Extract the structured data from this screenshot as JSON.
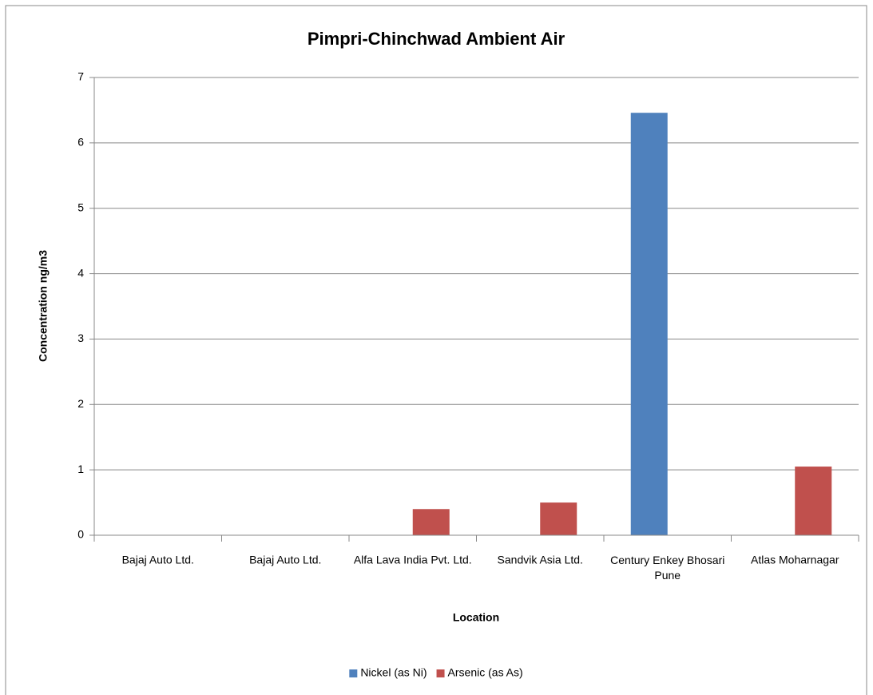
{
  "chart_data": {
    "type": "bar",
    "title": "Pimpri-Chinchwad Ambient Air",
    "x_label": "Location",
    "y_label": "Concentration ng/m3",
    "categories": [
      "Bajaj Auto Ltd.",
      "Bajaj Auto Ltd.",
      "Alfa Lava India Pvt. Ltd.",
      "Sandvik Asia Ltd.",
      "Century Enkey Bhosari Pune",
      "Atlas Moharnagar"
    ],
    "series": [
      {
        "name": "Nickel (as Ni)",
        "color": "#4f81bd",
        "values": [
          0,
          0,
          0,
          0,
          6.46,
          0
        ]
      },
      {
        "name": "Arsenic (as As)",
        "color": "#c0504d",
        "values": [
          0,
          0,
          0.4,
          0.5,
          0,
          1.05
        ]
      }
    ],
    "ylim": [
      0,
      7
    ],
    "yticks": [
      0,
      1,
      2,
      3,
      4,
      5,
      6,
      7
    ],
    "grid": true,
    "legend": "bottom"
  }
}
